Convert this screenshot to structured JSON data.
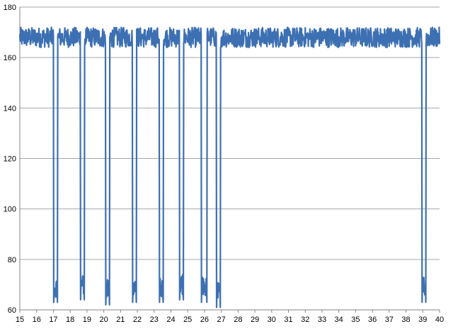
{
  "chart_data": {
    "type": "line",
    "title": "",
    "xlabel": "",
    "ylabel": "",
    "xlim": [
      15,
      40
    ],
    "ylim": [
      60,
      180
    ],
    "x_ticks": [
      15,
      16,
      17,
      18,
      19,
      20,
      21,
      22,
      23,
      24,
      25,
      26,
      27,
      28,
      29,
      30,
      31,
      32,
      33,
      34,
      35,
      36,
      37,
      38,
      39,
      40
    ],
    "y_ticks": [
      60,
      80,
      100,
      120,
      140,
      160,
      180
    ],
    "grid": "horizontal",
    "legend": "none",
    "series_color": "#3d70b2",
    "grid_color": "#a6a6a6",
    "baseline": 168,
    "noise_amplitude": 4,
    "dips": [
      {
        "start": 17.0,
        "end": 17.25,
        "low": 63
      },
      {
        "start": 18.6,
        "end": 18.85,
        "low": 64
      },
      {
        "start": 20.1,
        "end": 20.35,
        "low": 62
      },
      {
        "start": 21.7,
        "end": 21.95,
        "low": 63
      },
      {
        "start": 23.3,
        "end": 23.55,
        "low": 63
      },
      {
        "start": 24.5,
        "end": 24.75,
        "low": 64
      },
      {
        "start": 25.8,
        "end": 26.15,
        "low": 63
      },
      {
        "start": 26.7,
        "end": 26.95,
        "low": 61
      },
      {
        "start": 38.95,
        "end": 39.2,
        "low": 63
      }
    ]
  }
}
